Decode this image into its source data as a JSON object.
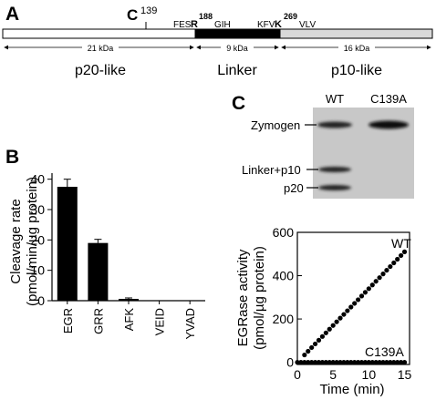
{
  "panel_labels": {
    "a": "A",
    "b": "B",
    "c": "C"
  },
  "domain_diagram": {
    "residue_c": "C",
    "residue_c_num": "139",
    "motif1_pre": "FES",
    "motif1_res": "R",
    "motif1_num": "188",
    "motif1_post": "GIH",
    "motif2_pre": "KFV",
    "motif2_res": "K",
    "motif2_num": "269",
    "motif2_post": "VLV",
    "segments": [
      {
        "size": "21 kDa",
        "name": "p20-like",
        "fill": "#ffffff"
      },
      {
        "size": "9 kDa",
        "name": "Linker",
        "fill": "#000000"
      },
      {
        "size": "16 kDa",
        "name": "p10-like",
        "fill": "#d9d9d9"
      }
    ]
  },
  "gel": {
    "lanes": [
      "WT",
      "C139A"
    ],
    "band_labels": [
      "Zymogen",
      "Linker+p10",
      "p20"
    ],
    "background": "#c8c8c8"
  },
  "chart_data": [
    {
      "type": "bar",
      "categories": [
        "EGR",
        "GRR",
        "AFK",
        "VEID",
        "YVAD"
      ],
      "values": [
        37.5,
        19.0,
        0.6,
        0,
        0
      ],
      "errors": [
        2.5,
        1.2,
        0.3,
        0,
        0
      ],
      "ylabel": "Cleavage rate",
      "ylabel2": "(pmol/min/µg protein)",
      "ylim": [
        0,
        42
      ],
      "yticks": [
        0,
        10,
        20,
        30,
        40
      ],
      "bar_color": "#000000"
    },
    {
      "type": "scatter",
      "xlabel": "Time (min)",
      "ylabel": "EGRase activity",
      "ylabel2": "(pmol/µg protein)",
      "xlim": [
        0,
        15.7
      ],
      "ylim": [
        -10,
        600
      ],
      "xticks": [
        0,
        5,
        10,
        15
      ],
      "yticks": [
        0,
        200,
        400,
        600
      ],
      "series": [
        {
          "name": "WT",
          "x": [
            1,
            1.5,
            2,
            2.5,
            3,
            3.5,
            4,
            4.5,
            5,
            5.5,
            6,
            6.5,
            7,
            7.5,
            8,
            8.5,
            9,
            9.5,
            10,
            10.5,
            11,
            11.5,
            12,
            12.5,
            13,
            13.5,
            14,
            14.5,
            15
          ],
          "y": [
            34,
            51,
            68,
            85,
            102,
            119,
            136,
            153,
            170,
            187,
            204,
            221,
            238,
            255,
            272,
            289,
            306,
            323,
            340,
            357,
            374,
            391,
            408,
            425,
            442,
            459,
            476,
            493,
            510
          ]
        },
        {
          "name": "C139A",
          "x": [
            0,
            0.5,
            1,
            1.5,
            2,
            2.5,
            3,
            3.5,
            4,
            4.5,
            5,
            5.5,
            6,
            6.5,
            7,
            7.5,
            8,
            8.5,
            9,
            9.5,
            10,
            10.5,
            11,
            11.5,
            12,
            12.5,
            13,
            13.5,
            14,
            14.5,
            15
          ],
          "y": [
            0,
            0,
            0,
            0,
            0,
            0,
            0,
            0,
            0,
            0,
            0,
            0,
            0,
            0,
            0,
            0,
            0,
            0,
            0,
            0,
            0,
            0,
            0,
            0,
            0,
            0,
            0,
            0,
            0,
            0,
            0
          ]
        }
      ]
    }
  ]
}
